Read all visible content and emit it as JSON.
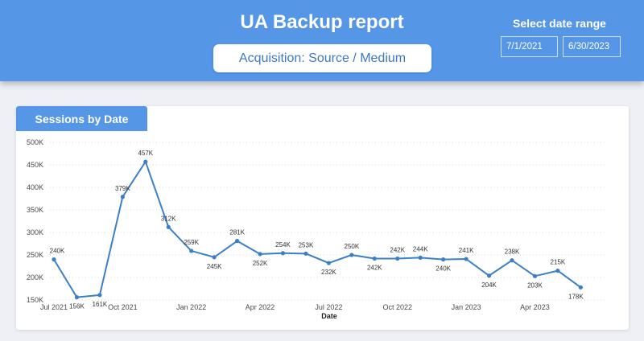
{
  "header": {
    "title": "UA Backup report",
    "subtitle_button": "Acquisition: Source / Medium",
    "date_range_label": "Select date range",
    "date_start": "7/1/2021",
    "date_end": "6/30/2023"
  },
  "colors": {
    "accent": "#5596e6",
    "line": "#3b80c6",
    "background": "#eef0f5"
  },
  "card": {
    "title": "Sessions by Date"
  },
  "chart_data": {
    "type": "line",
    "title": "Sessions by Date",
    "xlabel": "Date",
    "ylabel": "",
    "ylim": [
      150000,
      500000
    ],
    "grid": true,
    "yticks": [
      150000,
      200000,
      250000,
      300000,
      350000,
      400000,
      450000,
      500000
    ],
    "ytick_labels": [
      "150K",
      "200K",
      "250K",
      "300K",
      "350K",
      "400K",
      "450K",
      "500K"
    ],
    "xticks": [
      "2021-07",
      "2021-10",
      "2022-01",
      "2022-04",
      "2022-07",
      "2022-10",
      "2023-01",
      "2023-04"
    ],
    "xtick_labels": [
      "Jul 2021",
      "Oct 2021",
      "Jan 2022",
      "Apr 2022",
      "Jul 2022",
      "Oct 2022",
      "Jan 2023",
      "Apr 2023"
    ],
    "x": [
      "2021-07",
      "2021-08",
      "2021-09",
      "2021-10",
      "2021-11",
      "2021-12",
      "2022-01",
      "2022-02",
      "2022-03",
      "2022-04",
      "2022-05",
      "2022-06",
      "2022-07",
      "2022-08",
      "2022-09",
      "2022-10",
      "2022-11",
      "2022-12",
      "2023-01",
      "2023-02",
      "2023-03",
      "2023-04",
      "2023-05",
      "2023-06"
    ],
    "series": [
      {
        "values": [
          240000,
          156000,
          161000,
          379000,
          457000,
          312000,
          259000,
          245000,
          281000,
          252000,
          254000,
          253000,
          232000,
          250000,
          242000,
          242000,
          244000,
          240000,
          241000,
          204000,
          238000,
          203000,
          215000,
          178000
        ],
        "labels": [
          "240K",
          "156K",
          "161K",
          "379K",
          "457K",
          "312K",
          "259K",
          "245K",
          "281K",
          "252K",
          "254K",
          "253K",
          "232K",
          "250K",
          "242K",
          "242K",
          "244K",
          "240K",
          "241K",
          "204K",
          "238K",
          "203K",
          "215K",
          "178K"
        ]
      }
    ]
  }
}
